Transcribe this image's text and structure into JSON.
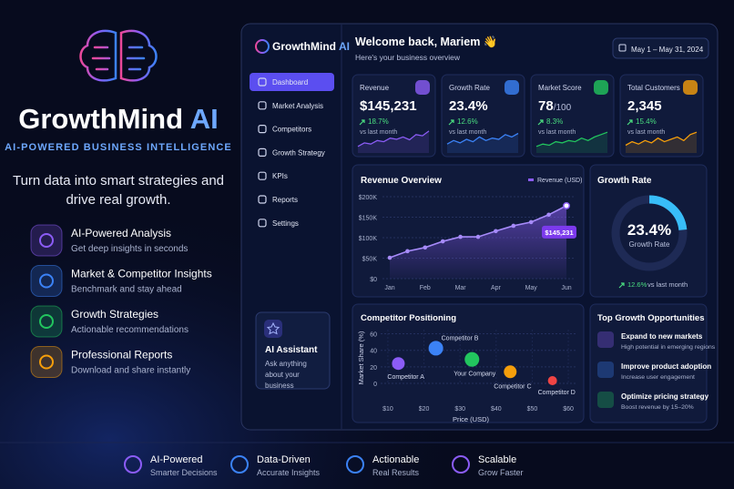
{
  "brand": {
    "name": "GrowthMind",
    "accent": "AI",
    "tagline": "AI-POWERED BUSINESS INTELLIGENCE",
    "headline": "Turn data into smart strategies and drive real growth."
  },
  "features": [
    {
      "title": "AI-Powered Analysis",
      "desc": "Get deep insights in seconds"
    },
    {
      "title": "Market & Competitor Insights",
      "desc": "Benchmark and stay ahead"
    },
    {
      "title": "Growth Strategies",
      "desc": "Actionable recommendations"
    },
    {
      "title": "Professional Reports",
      "desc": "Download and share instantly"
    }
  ],
  "app": {
    "brand": "GrowthMind",
    "accent": "AI",
    "nav": [
      "Dashboard",
      "Market Analysis",
      "Competitors",
      "Growth Strategy",
      "KPIs",
      "Reports",
      "Settings"
    ],
    "assistant": {
      "title": "AI Assistant",
      "desc": "Ask anything about your business"
    },
    "welcome": "Welcome back, Mariem 👋",
    "subtitle": "Here's your business overview",
    "date_range": "May 1 – May 31, 2024"
  },
  "kpis": [
    {
      "label": "Revenue",
      "value": "$145,231",
      "change": "18.7%",
      "note": "vs last month",
      "color": "#8b5cf6",
      "spark": [
        20,
        35,
        30,
        45,
        40,
        55,
        50,
        60,
        48,
        70,
        65,
        85
      ]
    },
    {
      "label": "Growth Rate",
      "value": "23.4%",
      "change": "12.6%",
      "note": "vs last month",
      "color": "#3b82f6",
      "spark": [
        30,
        45,
        35,
        50,
        40,
        60,
        45,
        55,
        50,
        70,
        60,
        75
      ]
    },
    {
      "label": "Market Score",
      "value": "78",
      "suffix": "/100",
      "change": "8.3%",
      "note": "vs last month",
      "color": "#22c55e",
      "spark": [
        20,
        30,
        25,
        40,
        35,
        45,
        40,
        55,
        45,
        60,
        70,
        80
      ]
    },
    {
      "label": "Total Customers",
      "value": "2,345",
      "change": "15.4%",
      "note": "vs last month",
      "color": "#f59e0b",
      "spark": [
        25,
        40,
        30,
        45,
        35,
        55,
        40,
        50,
        60,
        45,
        70,
        80
      ]
    }
  ],
  "revenue_chart": {
    "type": "line",
    "title": "Revenue Overview",
    "x": [
      0,
      0.5,
      1,
      1.5,
      2,
      2.5,
      3,
      3.5,
      4,
      4.5,
      5
    ],
    "xlim": [
      0,
      5
    ],
    "xticks": [
      {
        "value": 0,
        "label": "Jan"
      },
      {
        "value": 1,
        "label": "Feb"
      },
      {
        "value": 2,
        "label": "Mar"
      },
      {
        "value": 3,
        "label": "Apr"
      },
      {
        "value": 4,
        "label": "May"
      },
      {
        "value": 5,
        "label": "Jun"
      }
    ],
    "ylim": [
      0,
      200000
    ],
    "yticks": [
      {
        "value": 0,
        "label": "$0"
      },
      {
        "value": 50000,
        "label": "$50K"
      },
      {
        "value": 100000,
        "label": "$100K"
      },
      {
        "value": 150000,
        "label": "$150K"
      },
      {
        "value": 200000,
        "label": "$200K"
      }
    ],
    "series": [
      {
        "name": "Revenue (USD)",
        "color": "#8b5cf6",
        "values": [
          51000,
          67000,
          76000,
          91000,
          102000,
          102000,
          116000,
          129000,
          138000,
          156000,
          178000
        ]
      }
    ],
    "annotation": "$145,231",
    "grid": true
  },
  "growth_chart": {
    "type": "donut",
    "title": "Growth Rate",
    "value": 23.4,
    "value_label": "23.4%",
    "label": "Growth Rate",
    "change": "12.6%",
    "note": "vs last month",
    "color": "#38bdf8"
  },
  "competitor_chart": {
    "type": "scatter",
    "title": "Competitor Positioning",
    "x_label": "Price (USD)",
    "y_label": "Market Share (%)",
    "xlim": [
      8,
      62
    ],
    "ylim": [
      0,
      65
    ],
    "xticks": [
      {
        "value": 10,
        "label": "$10"
      },
      {
        "value": 20,
        "label": "$20"
      },
      {
        "value": 30,
        "label": "$30"
      },
      {
        "value": 40,
        "label": "$40"
      },
      {
        "value": 50,
        "label": "$50"
      },
      {
        "value": 60,
        "label": "$60"
      }
    ],
    "yticks": [
      0,
      20,
      40,
      60
    ],
    "points": [
      {
        "name": "Competitor A",
        "color": "#8b5cf6",
        "x": 12.9,
        "y": 24,
        "size": 7
      },
      {
        "name": "Competitor B",
        "color": "#3b82f6",
        "x": 23.3,
        "y": 42.5,
        "size": 8
      },
      {
        "name": "Your Company",
        "color": "#22c55e",
        "x": 33.3,
        "y": 29,
        "size": 8
      },
      {
        "name": "Competitor C",
        "color": "#f59e0b",
        "x": 43.9,
        "y": 14,
        "size": 7
      },
      {
        "name": "Competitor D",
        "color": "#ef4444",
        "x": 55.6,
        "y": 3.3,
        "size": 5
      }
    ],
    "grid": true
  },
  "opportunities": {
    "title": "Top Growth Opportunities",
    "items": [
      {
        "title": "Expand to new markets",
        "desc": "High potential in emerging regions"
      },
      {
        "title": "Improve product adoption",
        "desc": "Increase user engagement"
      },
      {
        "title": "Optimize pricing strategy",
        "desc": "Boost revenue by 15–20%"
      }
    ]
  },
  "footer": [
    {
      "title": "AI-Powered",
      "desc": "Smarter Decisions"
    },
    {
      "title": "Data-Driven",
      "desc": "Accurate Insights"
    },
    {
      "title": "Actionable",
      "desc": "Real Results"
    },
    {
      "title": "Scalable",
      "desc": "Grow Faster"
    }
  ]
}
